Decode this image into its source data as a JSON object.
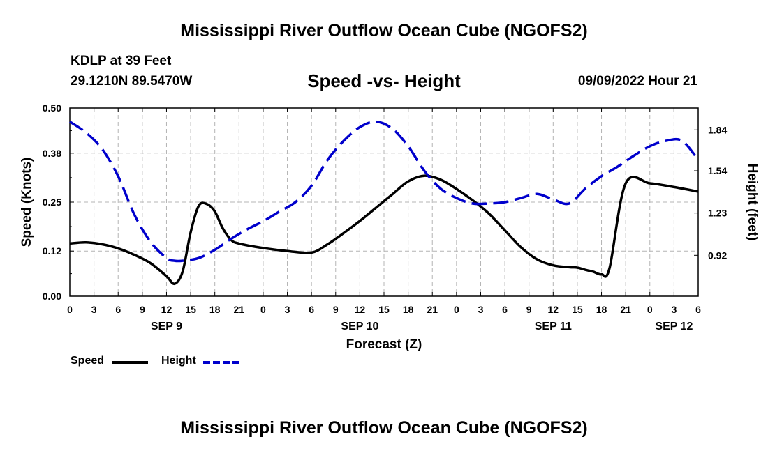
{
  "header": {
    "title": "Mississippi River Outflow Ocean Cube (NGOFS2)",
    "station": "KDLP at 39 Feet",
    "coords": "29.1210N  89.5470W",
    "subtitle": "Speed -vs- Height",
    "datetime": "09/09/2022 Hour 21",
    "footer_title": "Mississippi River Outflow Ocean Cube (NGOFS2)"
  },
  "legend": {
    "speed_label": "Speed",
    "height_label": "Height"
  },
  "colors": {
    "speed": "#000000",
    "height": "#0000cc",
    "grid": "#b4b4b4"
  },
  "chart_data": {
    "type": "line",
    "title": "Speed -vs- Height",
    "xlabel": "Forecast (Z)",
    "ylabel": "Speed (Knots)",
    "y2label": "Height (feet)",
    "xlim": [
      0,
      78
    ],
    "ylim": [
      0,
      0.5
    ],
    "y2lim": [
      0.62,
      2.0
    ],
    "x_ticks": [
      0,
      3,
      6,
      9,
      12,
      15,
      18,
      21,
      24,
      27,
      30,
      33,
      36,
      39,
      42,
      45,
      48,
      51,
      54,
      57,
      60,
      63,
      66,
      69,
      72,
      75,
      78
    ],
    "x_tick_labels": [
      "0",
      "3",
      "6",
      "9",
      "12",
      "15",
      "18",
      "21",
      "0",
      "3",
      "6",
      "9",
      "12",
      "15",
      "18",
      "21",
      "0",
      "3",
      "6",
      "9",
      "12",
      "15",
      "18",
      "21",
      "0",
      "3",
      "6"
    ],
    "day_labels": [
      {
        "x": 12,
        "label": "SEP 9"
      },
      {
        "x": 36,
        "label": "SEP 10"
      },
      {
        "x": 60,
        "label": "SEP 11"
      },
      {
        "x": 75,
        "label": "SEP 12"
      }
    ],
    "y_ticks": [
      0.0,
      0.12,
      0.25,
      0.38,
      0.5
    ],
    "y_tick_labels": [
      "0.00",
      "0.12",
      "0.25",
      "0.38",
      "0.50"
    ],
    "y2_ticks": [
      0.92,
      1.23,
      1.54,
      1.84
    ],
    "y2_tick_labels": [
      "0.92",
      "1.23",
      "1.54",
      "1.84"
    ],
    "series": [
      {
        "name": "Speed",
        "axis": "left",
        "style": "solid",
        "x": [
          0,
          2,
          4,
          6,
          8,
          10,
          12,
          13,
          14,
          15,
          16,
          17,
          18,
          19,
          20,
          21,
          24,
          27,
          30,
          32,
          34,
          36,
          38,
          40,
          42,
          44,
          46,
          48,
          50,
          52,
          54,
          56,
          58,
          60,
          62,
          63,
          64,
          65,
          66,
          67,
          69,
          72,
          75,
          78
        ],
        "values": [
          0.14,
          0.143,
          0.138,
          0.127,
          0.11,
          0.088,
          0.053,
          0.033,
          0.065,
          0.17,
          0.24,
          0.245,
          0.225,
          0.18,
          0.15,
          0.14,
          0.128,
          0.12,
          0.116,
          0.138,
          0.168,
          0.2,
          0.235,
          0.27,
          0.305,
          0.32,
          0.31,
          0.285,
          0.255,
          0.22,
          0.175,
          0.13,
          0.098,
          0.082,
          0.077,
          0.076,
          0.07,
          0.065,
          0.058,
          0.075,
          0.3,
          0.3,
          0.29,
          0.278
        ]
      },
      {
        "name": "Height",
        "axis": "right",
        "style": "dashed",
        "x": [
          0,
          2,
          4,
          6,
          8,
          10,
          12,
          13,
          14,
          16,
          18,
          20,
          22,
          24,
          26,
          28,
          30,
          32,
          34,
          36,
          38,
          40,
          42,
          44,
          46,
          48,
          50,
          52,
          54,
          56,
          58,
          60,
          62,
          64,
          66,
          68,
          70,
          72,
          74,
          76,
          78
        ],
        "values": [
          1.9,
          1.82,
          1.7,
          1.5,
          1.22,
          1.02,
          0.9,
          0.88,
          0.88,
          0.9,
          0.96,
          1.04,
          1.11,
          1.17,
          1.24,
          1.31,
          1.43,
          1.62,
          1.76,
          1.86,
          1.9,
          1.85,
          1.72,
          1.54,
          1.41,
          1.34,
          1.3,
          1.3,
          1.31,
          1.34,
          1.37,
          1.33,
          1.3,
          1.41,
          1.5,
          1.57,
          1.65,
          1.72,
          1.76,
          1.76,
          1.62
        ]
      }
    ]
  }
}
